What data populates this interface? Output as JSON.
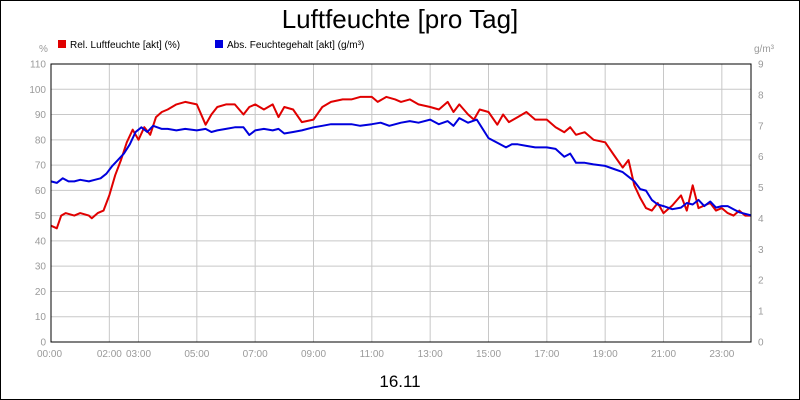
{
  "chart_data": {
    "type": "line",
    "title": "Luftfeuchte [pro Tag]",
    "xlabel": "16.11",
    "y_left_unit": "%",
    "y_right_unit": "g/m³",
    "x_ticks": [
      "00:00",
      "02:00",
      "03:00",
      "05:00",
      "07:00",
      "09:00",
      "11:00",
      "13:00",
      "15:00",
      "17:00",
      "19:00",
      "21:00",
      "23:00"
    ],
    "x_tick_hours": [
      0,
      2,
      3,
      5,
      7,
      9,
      11,
      13,
      15,
      17,
      19,
      21,
      23
    ],
    "xlim": [
      0,
      24
    ],
    "y_left_ticks": [
      "0",
      "10",
      "20",
      "30",
      "40",
      "50",
      "60",
      "70",
      "80",
      "90",
      "100",
      "110"
    ],
    "y_right_ticks": [
      "0",
      "1",
      "2",
      "3",
      "4",
      "5",
      "6",
      "7",
      "8",
      "9"
    ],
    "ylim_left": [
      0,
      110
    ],
    "ylim_right": [
      0,
      9
    ],
    "grid": true,
    "legend_position": "top-left",
    "series": [
      {
        "name": "Rel. Luftfeuchte [akt] (%)",
        "axis": "left",
        "color": "#e00000",
        "x": [
          0,
          0.2,
          0.35,
          0.5,
          0.8,
          1.0,
          1.3,
          1.4,
          1.6,
          1.8,
          2.0,
          2.2,
          2.4,
          2.6,
          2.8,
          3.0,
          3.2,
          3.4,
          3.6,
          3.8,
          4.0,
          4.3,
          4.6,
          5.0,
          5.3,
          5.5,
          5.7,
          6.0,
          6.3,
          6.6,
          6.8,
          7.0,
          7.3,
          7.6,
          7.8,
          8.0,
          8.3,
          8.6,
          9.0,
          9.3,
          9.6,
          10.0,
          10.3,
          10.6,
          11.0,
          11.2,
          11.5,
          11.8,
          12.0,
          12.3,
          12.6,
          13.0,
          13.3,
          13.6,
          13.8,
          14.0,
          14.3,
          14.5,
          14.7,
          15.0,
          15.3,
          15.5,
          15.7,
          16.0,
          16.3,
          16.6,
          17.0,
          17.3,
          17.6,
          17.8,
          18.0,
          18.3,
          18.6,
          19.0,
          19.3,
          19.6,
          19.8,
          20.0,
          20.2,
          20.4,
          20.6,
          20.8,
          21.0,
          21.3,
          21.6,
          21.8,
          22.0,
          22.2,
          22.4,
          22.6,
          22.8,
          23.0,
          23.2,
          23.4,
          23.6,
          23.8,
          24.0
        ],
        "values": [
          46,
          45,
          50,
          51,
          50,
          51,
          50,
          49,
          51,
          52,
          58,
          66,
          72,
          79,
          84,
          80,
          85,
          82,
          89,
          91,
          92,
          94,
          95,
          94,
          86,
          90,
          93,
          94,
          94,
          90,
          93,
          94,
          92,
          94,
          89,
          93,
          92,
          87,
          88,
          93,
          95,
          96,
          96,
          97,
          97,
          95,
          97,
          96,
          95,
          96,
          94,
          93,
          92,
          95,
          91,
          94,
          90,
          88,
          92,
          91,
          86,
          90,
          87,
          89,
          91,
          88,
          88,
          85,
          83,
          85,
          82,
          83,
          80,
          79,
          74,
          69,
          72,
          62,
          57,
          53,
          52,
          55,
          51,
          54,
          58,
          52,
          62,
          53,
          54,
          55,
          52,
          53,
          51,
          50,
          52,
          50,
          50
        ]
      },
      {
        "name": "Abs. Feuchtegehalt [akt] (g/m³)",
        "axis": "right",
        "color": "#0000dd",
        "x": [
          0,
          0.2,
          0.4,
          0.6,
          0.8,
          1.0,
          1.3,
          1.5,
          1.7,
          1.9,
          2.1,
          2.3,
          2.5,
          2.7,
          2.9,
          3.1,
          3.3,
          3.5,
          3.8,
          4.0,
          4.3,
          4.6,
          5.0,
          5.3,
          5.5,
          5.7,
          6.0,
          6.3,
          6.6,
          6.8,
          7.0,
          7.3,
          7.6,
          7.8,
          8.0,
          8.3,
          8.6,
          9.0,
          9.3,
          9.6,
          10.0,
          10.3,
          10.6,
          11.0,
          11.3,
          11.6,
          12.0,
          12.3,
          12.6,
          13.0,
          13.3,
          13.6,
          13.8,
          14.0,
          14.3,
          14.6,
          15.0,
          15.3,
          15.6,
          15.8,
          16.0,
          16.3,
          16.6,
          17.0,
          17.3,
          17.6,
          17.8,
          18.0,
          18.3,
          18.6,
          19.0,
          19.3,
          19.6,
          19.8,
          20.0,
          20.2,
          20.4,
          20.6,
          20.8,
          21.0,
          21.3,
          21.6,
          21.8,
          22.0,
          22.2,
          22.4,
          22.6,
          22.8,
          23.0,
          23.2,
          23.4,
          23.6,
          23.8,
          24.0
        ],
        "values": [
          5.2,
          5.15,
          5.3,
          5.2,
          5.2,
          5.25,
          5.2,
          5.25,
          5.3,
          5.45,
          5.7,
          5.9,
          6.1,
          6.4,
          6.8,
          6.95,
          6.8,
          7.0,
          6.9,
          6.9,
          6.85,
          6.9,
          6.85,
          6.9,
          6.8,
          6.85,
          6.9,
          6.95,
          6.95,
          6.7,
          6.85,
          6.9,
          6.85,
          6.9,
          6.75,
          6.8,
          6.85,
          6.95,
          7.0,
          7.05,
          7.05,
          7.05,
          7.0,
          7.05,
          7.1,
          7.0,
          7.1,
          7.15,
          7.1,
          7.2,
          7.05,
          7.15,
          7.0,
          7.25,
          7.1,
          7.2,
          6.6,
          6.45,
          6.3,
          6.4,
          6.4,
          6.35,
          6.3,
          6.3,
          6.25,
          6.0,
          6.1,
          5.8,
          5.8,
          5.75,
          5.7,
          5.6,
          5.5,
          5.35,
          5.2,
          4.95,
          4.9,
          4.6,
          4.45,
          4.4,
          4.3,
          4.35,
          4.5,
          4.45,
          4.6,
          4.4,
          4.55,
          4.35,
          4.4,
          4.4,
          4.3,
          4.2,
          4.15,
          4.1
        ]
      }
    ]
  }
}
